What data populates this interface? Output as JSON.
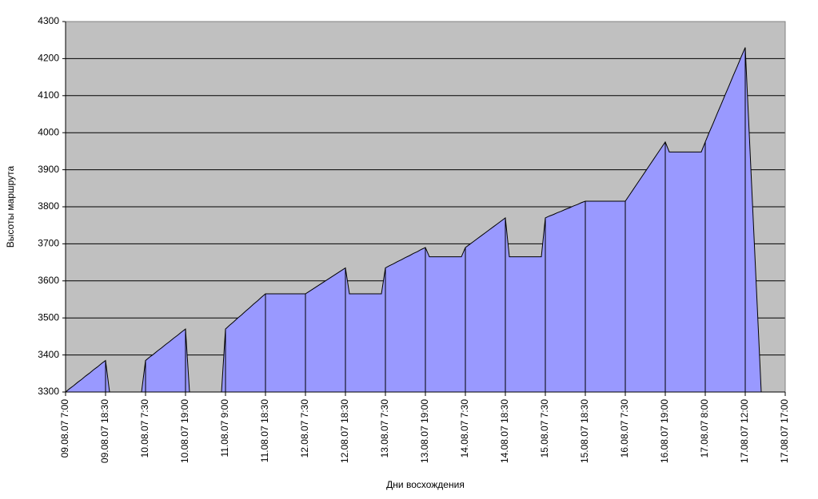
{
  "chart_data": {
    "type": "area",
    "x_label": "Дни восхождения",
    "y_label": "Высоты маршрута",
    "categories": [
      "09.08.07 7:00",
      null,
      null,
      null,
      null,
      null,
      null,
      null,
      null,
      null,
      "09.08.07 18:30",
      null,
      null,
      null,
      null,
      null,
      null,
      null,
      null,
      null,
      "10.08.07 7:30",
      null,
      null,
      null,
      null,
      null,
      null,
      null,
      null,
      null,
      "10.08.07 19:00",
      null,
      null,
      null,
      null,
      null,
      null,
      null,
      null,
      null,
      "11.08.07 9:00",
      null,
      null,
      null,
      null,
      null,
      null,
      null,
      null,
      null,
      "11.08.07 18:30",
      null,
      null,
      null,
      null,
      null,
      null,
      null,
      null,
      null,
      "12.08.07 7:30",
      null,
      null,
      null,
      null,
      null,
      null,
      null,
      null,
      null,
      "12.08.07 18:30",
      null,
      null,
      null,
      null,
      null,
      null,
      null,
      null,
      null,
      "13.08.07 7:30",
      null,
      null,
      null,
      null,
      null,
      null,
      null,
      null,
      null,
      "13.08.07 19:00",
      null,
      null,
      null,
      null,
      null,
      null,
      null,
      null,
      null,
      "14.08.07 7:30",
      null,
      null,
      null,
      null,
      null,
      null,
      null,
      null,
      null,
      "14.08.07 18:30",
      null,
      null,
      null,
      null,
      null,
      null,
      null,
      null,
      null,
      "15.08.07 7:30",
      null,
      null,
      null,
      null,
      null,
      null,
      null,
      null,
      null,
      "15.08.07 18:30",
      null,
      null,
      null,
      null,
      null,
      null,
      null,
      null,
      null,
      "16.08.07 7:30",
      null,
      null,
      null,
      null,
      null,
      null,
      null,
      null,
      null,
      "16.08.07 19:00",
      null,
      null,
      null,
      null,
      null,
      null,
      null,
      null,
      null,
      "17.08.07 8:00",
      null,
      null,
      null,
      null,
      null,
      null,
      null,
      null,
      null,
      "17.08.07 12:00",
      null,
      null,
      null,
      null,
      null,
      null,
      null,
      null,
      null,
      "17.08.07 17:00"
    ],
    "values": [
      3300,
      3309,
      3317,
      3326,
      3334,
      3343,
      3351,
      3360,
      3368,
      3377,
      3385,
      3300,
      3300,
      3300,
      3300,
      3300,
      3300,
      3300,
      3300,
      3300,
      3385,
      3394,
      3402,
      3411,
      3419,
      3428,
      3436,
      3445,
      3453,
      3462,
      3470,
      3300,
      3300,
      3300,
      3300,
      3300,
      3300,
      3300,
      3300,
      3300,
      3470,
      3480,
      3489,
      3499,
      3508,
      3518,
      3527,
      3537,
      3546,
      3556,
      3565,
      3565,
      3565,
      3565,
      3565,
      3565,
      3565,
      3565,
      3565,
      3565,
      3565,
      3572,
      3579,
      3586,
      3593,
      3600,
      3607,
      3614,
      3621,
      3628,
      3635,
      3565,
      3565,
      3565,
      3565,
      3565,
      3565,
      3565,
      3565,
      3565,
      3635,
      3641,
      3646,
      3652,
      3657,
      3663,
      3668,
      3674,
      3679,
      3685,
      3690,
      3665,
      3665,
      3665,
      3665,
      3665,
      3665,
      3665,
      3665,
      3665,
      3690,
      3698,
      3706,
      3714,
      3722,
      3730,
      3738,
      3746,
      3754,
      3762,
      3770,
      3665,
      3665,
      3665,
      3665,
      3665,
      3665,
      3665,
      3665,
      3665,
      3770,
      3775,
      3779,
      3784,
      3788,
      3793,
      3797,
      3802,
      3806,
      3811,
      3815,
      3815,
      3815,
      3815,
      3815,
      3815,
      3815,
      3815,
      3815,
      3815,
      3815,
      3831,
      3847,
      3863,
      3879,
      3895,
      3911,
      3927,
      3943,
      3959,
      3975,
      3948,
      3948,
      3948,
      3948,
      3948,
      3948,
      3948,
      3948,
      3948,
      3975,
      4001,
      4026,
      4052,
      4077,
      4103,
      4128,
      4154,
      4179,
      4205,
      4230,
      3998,
      3765,
      3533,
      3300,
      null,
      null,
      null,
      null,
      null,
      null
    ],
    "color": "#9999ff",
    "background": "#c0c0c0",
    "ylim": [
      3300,
      4300
    ],
    "yticks": [
      3300,
      3400,
      3500,
      3600,
      3700,
      3800,
      3900,
      4000,
      4100,
      4200,
      4300
    ],
    "grid": true,
    "drop_lines": true
  }
}
